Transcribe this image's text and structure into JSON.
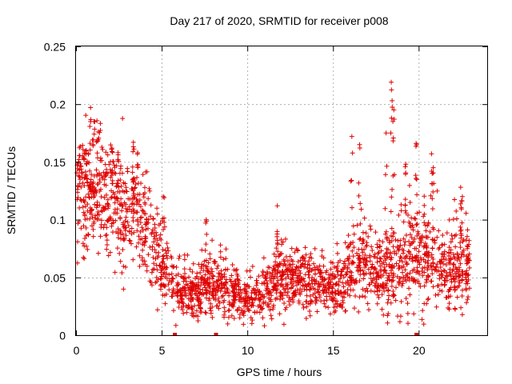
{
  "chart_data": {
    "type": "scatter",
    "title": "Day 217 of 2020, SRMTID for receiver p008",
    "xlabel": "GPS time / hours",
    "ylabel": "SRMTID / TECUs",
    "xlim": [
      0,
      24
    ],
    "ylim": [
      0,
      0.25
    ],
    "x_ticks": [
      0,
      5,
      10,
      15,
      20
    ],
    "y_ticks": [
      0,
      0.05,
      0.1,
      0.15,
      0.2,
      0.25
    ],
    "x_tick_labels": [
      "0",
      "5",
      "10",
      "15",
      "20"
    ],
    "y_tick_labels": [
      "0",
      "0.05",
      "0.1",
      "0.15",
      "0.2",
      "0.25"
    ],
    "grid": true,
    "marker": "+",
    "series_color": "#e00000",
    "baseline_markers_x": [
      5.75,
      8.15,
      19.85
    ],
    "envelope": {
      "x": [
        0,
        0.5,
        1,
        1.5,
        2,
        2.5,
        3,
        3.5,
        4,
        4.5,
        5,
        5.5,
        6,
        6.5,
        7,
        7.5,
        8,
        8.5,
        9,
        9.5,
        10,
        10.5,
        11,
        11.5,
        12,
        12.5,
        13,
        13.5,
        14,
        14.5,
        15,
        15.5,
        16,
        16.5,
        17,
        17.5,
        18,
        18.5,
        19,
        19.5,
        20,
        20.5,
        21,
        21.5,
        22,
        22.5,
        23
      ],
      "mean": [
        0.115,
        0.12,
        0.13,
        0.125,
        0.115,
        0.105,
        0.1,
        0.105,
        0.095,
        0.075,
        0.06,
        0.05,
        0.04,
        0.038,
        0.038,
        0.042,
        0.045,
        0.042,
        0.038,
        0.035,
        0.032,
        0.03,
        0.035,
        0.045,
        0.052,
        0.05,
        0.048,
        0.047,
        0.045,
        0.042,
        0.04,
        0.044,
        0.05,
        0.06,
        0.058,
        0.055,
        0.05,
        0.055,
        0.06,
        0.07,
        0.065,
        0.07,
        0.06,
        0.055,
        0.055,
        0.062,
        0.06
      ],
      "spread": [
        0.025,
        0.03,
        0.032,
        0.03,
        0.028,
        0.026,
        0.025,
        0.028,
        0.025,
        0.02,
        0.016,
        0.014,
        0.012,
        0.011,
        0.011,
        0.012,
        0.013,
        0.012,
        0.011,
        0.01,
        0.01,
        0.01,
        0.011,
        0.013,
        0.015,
        0.014,
        0.013,
        0.013,
        0.012,
        0.012,
        0.012,
        0.012,
        0.014,
        0.02,
        0.017,
        0.015,
        0.015,
        0.02,
        0.022,
        0.025,
        0.018,
        0.02,
        0.017,
        0.016,
        0.016,
        0.02,
        0.016
      ]
    },
    "peaks": [
      {
        "x": 0.15,
        "y": 0.15
      },
      {
        "x": 0.6,
        "y": 0.16
      },
      {
        "x": 0.85,
        "y": 0.197
      },
      {
        "x": 1.05,
        "y": 0.185
      },
      {
        "x": 1.3,
        "y": 0.176
      },
      {
        "x": 2.1,
        "y": 0.162
      },
      {
        "x": 2.45,
        "y": 0.158
      },
      {
        "x": 3.35,
        "y": 0.167
      },
      {
        "x": 3.6,
        "y": 0.158
      },
      {
        "x": 5.1,
        "y": 0.12
      },
      {
        "x": 7.6,
        "y": 0.1
      },
      {
        "x": 11.75,
        "y": 0.112
      },
      {
        "x": 16.1,
        "y": 0.172
      },
      {
        "x": 16.55,
        "y": 0.165
      },
      {
        "x": 18.1,
        "y": 0.175
      },
      {
        "x": 18.4,
        "y": 0.219
      },
      {
        "x": 18.45,
        "y": 0.203
      },
      {
        "x": 18.55,
        "y": 0.195
      },
      {
        "x": 19.25,
        "y": 0.148
      },
      {
        "x": 19.85,
        "y": 0.166
      },
      {
        "x": 20.75,
        "y": 0.157
      },
      {
        "x": 20.85,
        "y": 0.145
      },
      {
        "x": 22.45,
        "y": 0.128
      },
      {
        "x": 22.55,
        "y": 0.12
      }
    ]
  }
}
